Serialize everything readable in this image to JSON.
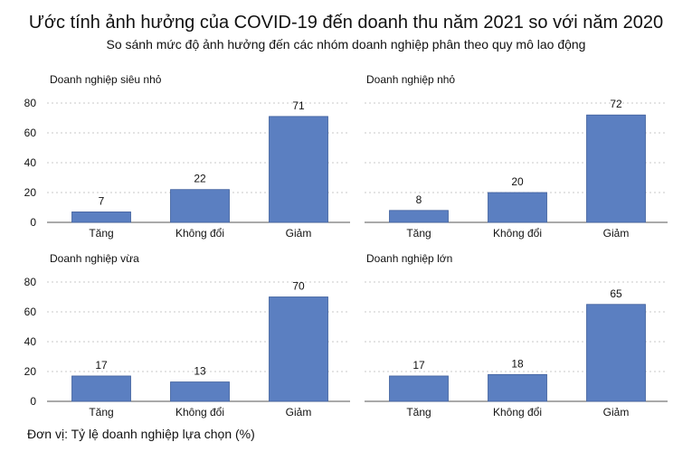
{
  "title": "Ước tính ảnh hưởng của COVID-19 đến doanh thu năm 2021 so với năm 2020",
  "subtitle": "So sánh mức độ ảnh hưởng đến các nhóm doanh nghiệp phân theo quy mô lao động",
  "footnote": "Đơn vị: Tỷ lệ doanh nghiệp lựa chọn (%)",
  "colors": {
    "bar": "#5b7fc1",
    "bar_stroke": "#3f5f9c"
  },
  "chart_data": [
    {
      "type": "bar",
      "title": "Doanh nghiệp siêu nhỏ",
      "categories": [
        "Tăng",
        "Không đổi",
        "Giảm"
      ],
      "values": [
        7,
        22,
        71
      ],
      "ylim": [
        0,
        80
      ],
      "yticks": [
        0,
        20,
        40,
        60,
        80
      ],
      "grid": true
    },
    {
      "type": "bar",
      "title": "Doanh nghiệp nhỏ",
      "categories": [
        "Tăng",
        "Không đổi",
        "Giảm"
      ],
      "values": [
        8,
        20,
        72
      ],
      "ylim": [
        0,
        80
      ],
      "yticks": [
        0,
        20,
        40,
        60,
        80
      ],
      "grid": true
    },
    {
      "type": "bar",
      "title": "Doanh nghiệp vừa",
      "categories": [
        "Tăng",
        "Không đổi",
        "Giảm"
      ],
      "values": [
        17,
        13,
        70
      ],
      "ylim": [
        0,
        80
      ],
      "yticks": [
        0,
        20,
        40,
        60,
        80
      ],
      "grid": true
    },
    {
      "type": "bar",
      "title": "Doanh nghiệp lớn",
      "categories": [
        "Tăng",
        "Không đổi",
        "Giảm"
      ],
      "values": [
        17,
        18,
        65
      ],
      "ylim": [
        0,
        80
      ],
      "yticks": [
        0,
        20,
        40,
        60,
        80
      ],
      "grid": true
    }
  ]
}
